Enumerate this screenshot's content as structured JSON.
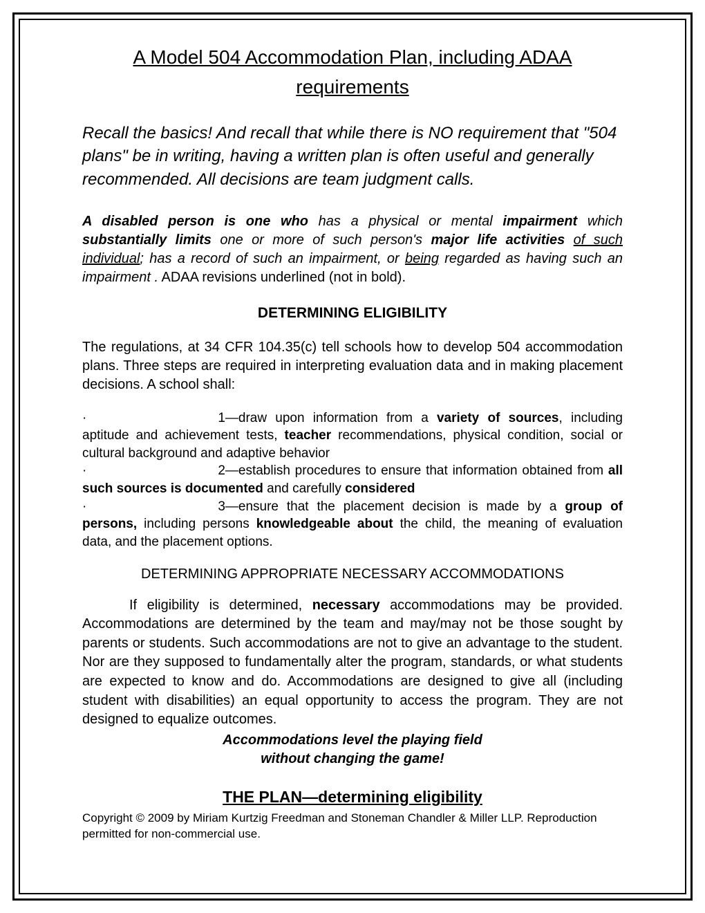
{
  "title": "A Model 504 Accommodation Plan, including ADAA requirements",
  "intro": "Recall the basics!  And recall that while there is NO requirement that \"504 plans\" be in writing, having a written plan is often useful and generally recommended. All decisions are team judgment calls.",
  "definition": {
    "p1_bold": "A disabled person is one who",
    "p2": " has a physical or mental ",
    "p3_bold": "impairment",
    "p4": " which ",
    "p5_bold": "substantially limits",
    "p6": " one or more of such person's ",
    "p7_bold": "major life activities",
    "p8": " ",
    "p9_ul": "of such individual",
    "p10": "; has a record of such an impairment, or ",
    "p11_ul": "being",
    "p12": " regarded as having such an impairment .",
    "p13_plain": "  ADAA revisions underlined (not in bold)."
  },
  "eligibility_heading": "DETERMINING ELIGIBILITY",
  "regs_para": "The regulations, at 34 CFR 104.35(c) tell schools how to develop 504 accommodation plans. Three steps are required in interpreting evaluation data and in making placement decisions. A school shall:",
  "bullets": {
    "b1a": "1—draw upon information from a ",
    "b1b": "variety of sources",
    "b1c": ", including aptitude and achievement tests, ",
    "b1d": "teacher",
    "b1e": " recommendations, physical condition, social or cultural background and adaptive behavior",
    "b2a": "2—establish procedures to ensure that information obtained from ",
    "b2b": "all such sources is documented",
    "b2c": " and carefully ",
    "b2d": "considered",
    "b3a": "3—ensure that the placement decision is made by a ",
    "b3b": "group of persons,",
    "b3c": " including persons ",
    "b3d": "knowledgeable about",
    "b3e": " the child, the meaning of evaluation data, and the placement options."
  },
  "accom_heading": "DETERMINING APPROPRIATE NECESSARY ACCOMMODATIONS",
  "accom": {
    "a1": "If eligibility is determined, ",
    "a2": "necessary",
    "a3": " accommodations may be provided. Accommodations are determined by the team and may/may not be those sought by parents or students.  Such accommodations are not to give an advantage to the student.  Nor are they supposed to fundamentally alter the program, standards, or what students are expected to know and do.   Accommodations are designed to give all (including student with disabilities) an  equal opportunity to access the program. They are not designed to equalize outcomes."
  },
  "tagline1": "Accommodations level the playing field",
  "tagline2": "without changing the game!",
  "plan_heading": "THE PLAN—determining eligibility",
  "copyright": "Copyright © 2009 by Miriam Kurtzig Freedman and Stoneman Chandler & Miller LLP. Reproduction permitted for non-commercial use."
}
